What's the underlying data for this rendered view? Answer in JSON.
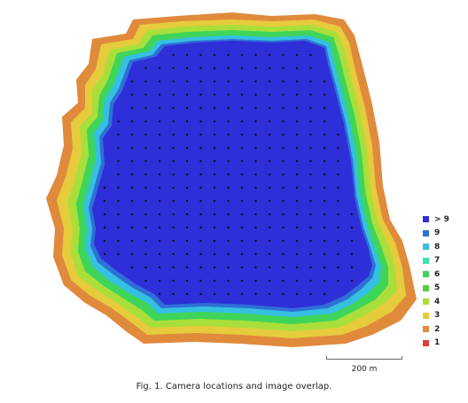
{
  "legend": {
    "items": [
      {
        "label": "> 9",
        "color": "#2e2fd8"
      },
      {
        "label": "9",
        "color": "#2f6fd6"
      },
      {
        "label": "8",
        "color": "#35c0e2"
      },
      {
        "label": "7",
        "color": "#3fe0b0"
      },
      {
        "label": "6",
        "color": "#3fd45a"
      },
      {
        "label": "5",
        "color": "#55d03a"
      },
      {
        "label": "4",
        "color": "#a9df3a"
      },
      {
        "label": "3",
        "color": "#e6cb3c"
      },
      {
        "label": "2",
        "color": "#e08a3c"
      },
      {
        "label": "1",
        "color": "#d9413a"
      }
    ]
  },
  "scale_bar": {
    "label": "200 m"
  },
  "caption": "Fig. 1. Camera locations and image overlap.",
  "map": {
    "camera_dot_color": "#111111"
  }
}
